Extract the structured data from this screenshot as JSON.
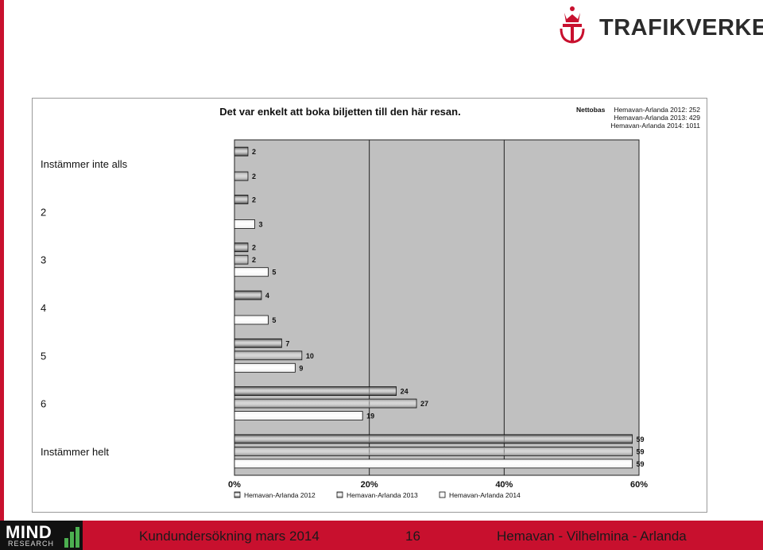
{
  "brand": {
    "logo_text": "TRAFIKVERKET"
  },
  "chart_data": {
    "type": "bar",
    "orientation": "horizontal",
    "title": "Det var enkelt att boka biljetten till den här resan.",
    "base_note": {
      "label": "Nettobas",
      "lines": [
        "Hemavan-Arlanda 2012: 252",
        "Hemavan-Arlanda 2013: 429",
        "Hemavan-Arlanda 2014: 1011"
      ]
    },
    "categories": [
      "Instämmer inte alls",
      "2",
      "3",
      "4",
      "5",
      "6",
      "Instämmer helt"
    ],
    "series": [
      {
        "name": "Hemavan-Arlanda 2012",
        "values": [
          2,
          2,
          2,
          4,
          7,
          24,
          59
        ],
        "color": "#3c3c3c"
      },
      {
        "name": "Hemavan-Arlanda 2013",
        "values": [
          2,
          null,
          2,
          null,
          10,
          27,
          59
        ],
        "color": "#8a8a8a"
      },
      {
        "name": "Hemavan-Arlanda 2014",
        "values": [
          null,
          3,
          5,
          5,
          9,
          19,
          59
        ],
        "color": "#f2f2f2"
      }
    ],
    "x_ticks": [
      "0%",
      "20%",
      "40%",
      "60%"
    ],
    "xlim": [
      0,
      60
    ],
    "gridlines": [
      20,
      40
    ],
    "legend_position": "bottom",
    "plot_background": "#c0c0c0"
  },
  "footer": {
    "left_text": "Kundundersökning mars 2014",
    "page_number": "16",
    "right_text": "Hemavan - Vilhelmina - Arlanda",
    "logo_word": "MIND",
    "logo_sub": "RESEARCH"
  },
  "colors": {
    "brand_red": "#c8102e",
    "text_dark": "#2b2b2b"
  }
}
